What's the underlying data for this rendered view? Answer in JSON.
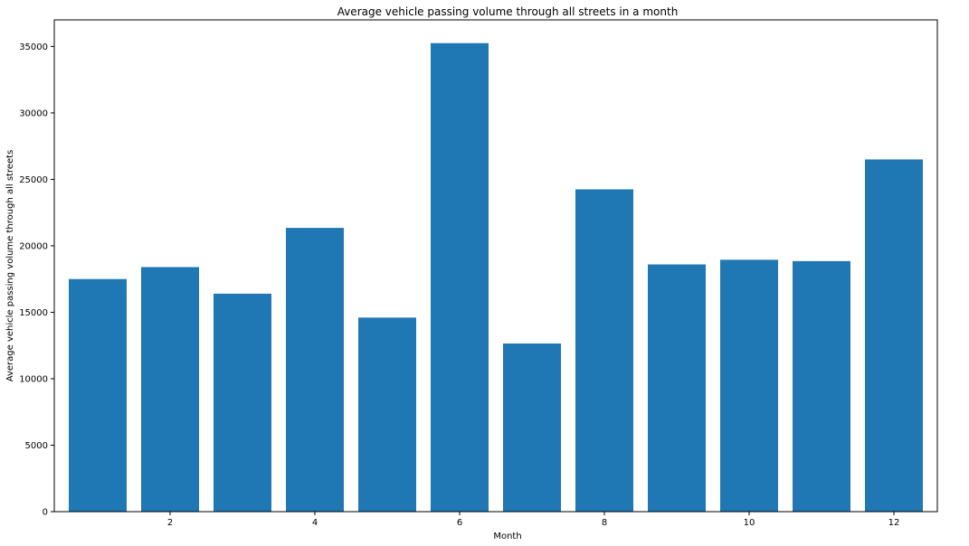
{
  "chart_data": {
    "type": "bar",
    "title": "Average vehicle passing volume through all streets in a month",
    "xlabel": "Month",
    "ylabel": "Average vehicle passing volume through all streets",
    "x": [
      1,
      2,
      3,
      4,
      5,
      6,
      7,
      8,
      9,
      10,
      11,
      12
    ],
    "values": [
      17500,
      18400,
      16400,
      21350,
      14600,
      35250,
      12650,
      24250,
      18600,
      18950,
      18850,
      26500
    ],
    "xlim": [
      0.4,
      12.6
    ],
    "ylim": [
      0,
      37000
    ],
    "xticks": [
      2,
      4,
      6,
      8,
      10,
      12
    ],
    "yticks": [
      0,
      5000,
      10000,
      15000,
      20000,
      25000,
      30000,
      35000
    ],
    "bar_color": "#1f77b4",
    "grid": false,
    "legend": "none"
  }
}
